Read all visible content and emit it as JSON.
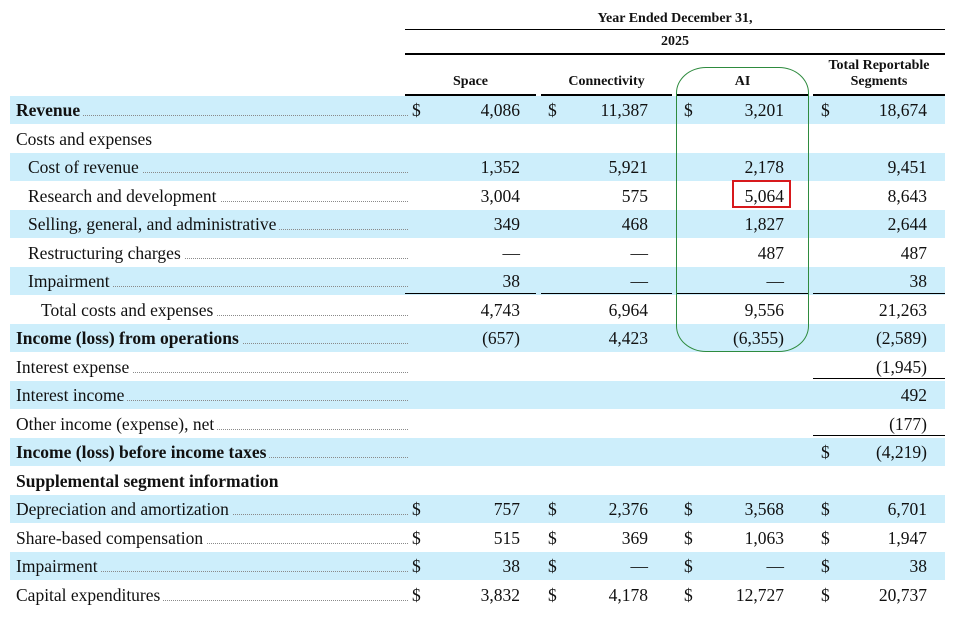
{
  "header": {
    "period_label": "Year Ended December 31,",
    "year": "2025",
    "columns": [
      "Space",
      "Connectivity",
      "AI",
      "Total Reportable Segments"
    ]
  },
  "colors": {
    "shade": "#cdeefb",
    "highlight_oval": "#2e8b3e",
    "highlight_box": "#d7191c"
  },
  "rows": [
    {
      "label": "Revenue",
      "style": "bold",
      "shade": true,
      "dollars": [
        true,
        true,
        true,
        true
      ],
      "values": [
        "4,086",
        "11,387",
        "3,201",
        "18,674"
      ]
    },
    {
      "label": "Costs and expenses",
      "style": "plain",
      "shade": false,
      "nodots": true,
      "dollars": [
        false,
        false,
        false,
        false
      ],
      "values": [
        "",
        "",
        "",
        ""
      ]
    },
    {
      "label": "Cost of revenue",
      "style": "i1",
      "shade": true,
      "dollars": [
        false,
        false,
        false,
        false
      ],
      "values": [
        "1,352",
        "5,921",
        "2,178",
        "9,451"
      ]
    },
    {
      "label": "Research and development",
      "style": "i1",
      "shade": false,
      "dollars": [
        false,
        false,
        false,
        false
      ],
      "values": [
        "3,004",
        "575",
        "5,064",
        "8,643"
      ]
    },
    {
      "label": "Selling, general, and administrative",
      "style": "i1",
      "shade": true,
      "dollars": [
        false,
        false,
        false,
        false
      ],
      "values": [
        "349",
        "468",
        "1,827",
        "2,644"
      ]
    },
    {
      "label": "Restructuring charges",
      "style": "i1",
      "shade": false,
      "dollars": [
        false,
        false,
        false,
        false
      ],
      "values": [
        "—",
        "—",
        "487",
        "487"
      ]
    },
    {
      "label": "Impairment",
      "style": "i1",
      "shade": true,
      "dollars": [
        false,
        false,
        false,
        false
      ],
      "values": [
        "38",
        "—",
        "—",
        "38"
      ]
    },
    {
      "label": "Total costs and expenses",
      "style": "i2",
      "shade": false,
      "dollars": [
        false,
        false,
        false,
        false
      ],
      "values": [
        "4,743",
        "6,964",
        "9,556",
        "21,263"
      ]
    },
    {
      "label": "Income (loss) from operations",
      "style": "bold",
      "shade": true,
      "dollars": [
        false,
        false,
        false,
        false
      ],
      "values": [
        "(657)",
        "4,423",
        "(6,355)",
        "(2,589)"
      ]
    },
    {
      "label": "Interest expense",
      "style": "plain",
      "shade": false,
      "dollars": [
        false,
        false,
        false,
        false
      ],
      "values": [
        "",
        "",
        "",
        "(1,945)"
      ]
    },
    {
      "label": "Interest income",
      "style": "plain",
      "shade": true,
      "dollars": [
        false,
        false,
        false,
        false
      ],
      "values": [
        "",
        "",
        "",
        "492"
      ]
    },
    {
      "label": "Other income (expense), net",
      "style": "plain",
      "shade": false,
      "dollars": [
        false,
        false,
        false,
        false
      ],
      "values": [
        "",
        "",
        "",
        "(177)"
      ]
    },
    {
      "label": "Income (loss) before income taxes",
      "style": "bold",
      "shade": true,
      "dollars": [
        false,
        false,
        false,
        true
      ],
      "values": [
        "",
        "",
        "",
        "(4,219)"
      ]
    },
    {
      "label": "Supplemental segment information",
      "style": "bold",
      "shade": false,
      "nodots": true,
      "dollars": [
        false,
        false,
        false,
        false
      ],
      "values": [
        "",
        "",
        "",
        ""
      ]
    },
    {
      "label": "Depreciation and amortization",
      "style": "plain",
      "shade": true,
      "dollars": [
        true,
        true,
        true,
        true
      ],
      "values": [
        "757",
        "2,376",
        "3,568",
        "6,701"
      ]
    },
    {
      "label": "Share-based compensation",
      "style": "plain",
      "shade": false,
      "dollars": [
        true,
        true,
        true,
        true
      ],
      "values": [
        "515",
        "369",
        "1,063",
        "1,947"
      ]
    },
    {
      "label": "Impairment",
      "style": "plain",
      "shade": true,
      "dollars": [
        true,
        true,
        true,
        true
      ],
      "values": [
        "38",
        "—",
        "—",
        "38"
      ]
    },
    {
      "label": "Capital expenditures",
      "style": "plain",
      "shade": false,
      "dollars": [
        true,
        true,
        true,
        true
      ],
      "values": [
        "3,832",
        "4,178",
        "12,727",
        "20,737"
      ]
    }
  ],
  "dollar_sign": "$"
}
